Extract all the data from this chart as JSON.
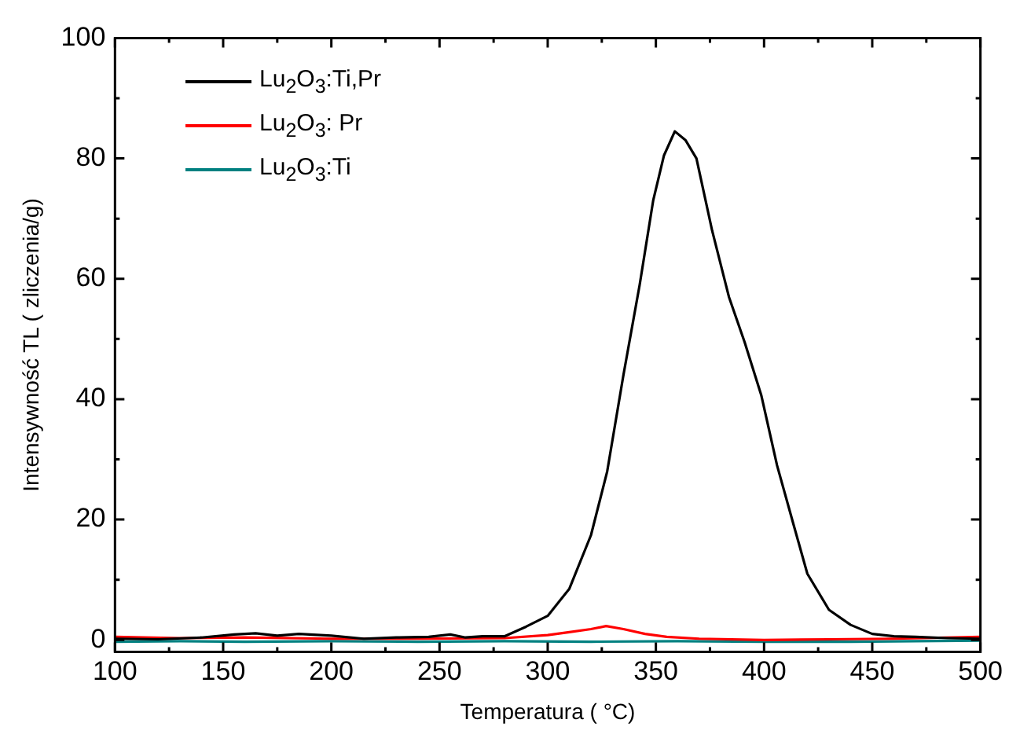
{
  "chart_data": {
    "type": "line",
    "xlabel": "Temperatura ( °C)",
    "ylabel": "Intensywność TL ( zliczenia/g)",
    "xlim": [
      100,
      500
    ],
    "ylim": [
      -2,
      100
    ],
    "xticks": [
      100,
      {
        "value": 125,
        "label": null
      },
      150,
      {
        "value": 175,
        "label": null
      },
      200,
      {
        "value": 225,
        "label": null
      },
      250,
      {
        "value": 275,
        "label": null
      },
      300,
      {
        "value": 325,
        "label": null
      },
      350,
      {
        "value": 375,
        "label": null
      },
      400,
      {
        "value": 425,
        "label": null
      },
      450,
      {
        "value": 475,
        "label": null
      },
      500
    ],
    "yticks": [
      0,
      {
        "value": 10,
        "label": null
      },
      20,
      {
        "value": 30,
        "label": null
      },
      40,
      {
        "value": 50,
        "label": null
      },
      60,
      {
        "value": 70,
        "label": null
      },
      80,
      {
        "value": 90,
        "label": null
      },
      100
    ],
    "grid": false,
    "legend": "top left",
    "marker": "none",
    "line_style": "solid",
    "series": [
      {
        "name": "Lu$_{2}$O$_{3}$:Ti,Pr",
        "color": "#000000",
        "x": [
          100,
          120,
          140,
          155,
          165,
          175,
          185,
          200,
          215,
          230,
          245,
          255,
          262,
          270,
          280,
          290,
          300,
          310,
          320,
          327.5,
          335,
          342.5,
          348.75,
          353.75,
          358.75,
          363.75,
          368.75,
          376,
          383.75,
          391,
          398.75,
          406,
          413.75,
          420,
          430,
          440,
          450,
          460,
          470,
          485,
          500
        ],
        "values": [
          0.2,
          0.1,
          0.4,
          0.9,
          1.1,
          0.7,
          1.0,
          0.7,
          0.2,
          0.4,
          0.5,
          0.9,
          0.4,
          0.6,
          0.6,
          2.2,
          4.0,
          8.5,
          17.4,
          28,
          44,
          59,
          73,
          80.5,
          84.5,
          83,
          80,
          68,
          57,
          49.5,
          40.6,
          29,
          19,
          11,
          5,
          2.5,
          1,
          0.6,
          0.5,
          0.3,
          0.2
        ]
      },
      {
        "name": "Lu$_{2}$O$_{3}$: Pr",
        "color": "#ff0000",
        "x": [
          100,
          130,
          160,
          200,
          240,
          280,
          300,
          310,
          320,
          327,
          335,
          345,
          355,
          370,
          400,
          430,
          460,
          500
        ],
        "values": [
          0.5,
          0.3,
          0.4,
          0.2,
          0.2,
          0.3,
          0.8,
          1.3,
          1.8,
          2.3,
          1.8,
          1.0,
          0.5,
          0.2,
          0.0,
          0.1,
          0.2,
          0.5
        ]
      },
      {
        "name": "Lu$_{2}$O$_{3}$:Ti",
        "color": "#008080",
        "x": [
          100,
          130,
          160,
          200,
          240,
          280,
          320,
          360,
          400,
          440,
          470,
          500
        ],
        "values": [
          -0.3,
          -0.2,
          -0.3,
          -0.2,
          -0.3,
          -0.2,
          -0.3,
          -0.2,
          -0.3,
          -0.3,
          -0.2,
          -0.1
        ]
      }
    ]
  }
}
